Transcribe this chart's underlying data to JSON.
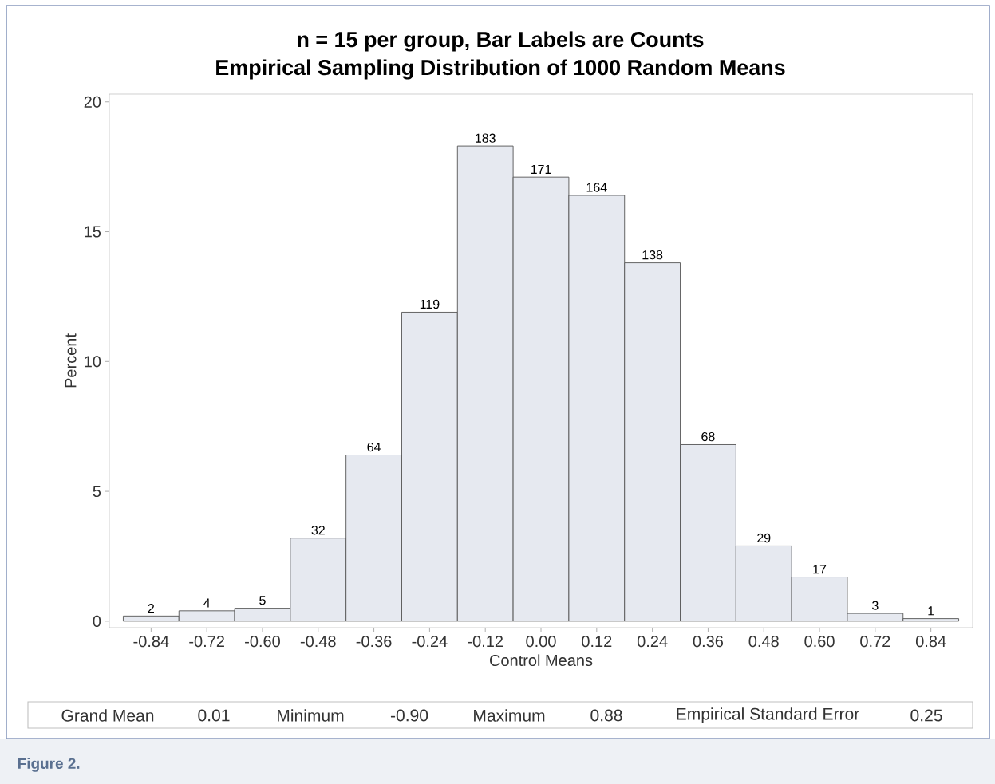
{
  "chart_data": {
    "type": "histogram",
    "title": "n = 15 per group, Bar Labels are Counts",
    "subtitle": "Empirical Sampling Distribution of 1000 Random Means",
    "xlabel": "Control Means",
    "ylabel": "Percent",
    "bins": [
      -0.9,
      -0.78,
      -0.66,
      -0.54,
      -0.42,
      -0.3,
      -0.18,
      -0.06,
      0.06,
      0.18,
      0.3,
      0.42,
      0.54,
      0.66,
      0.78,
      0.9
    ],
    "values": [
      0.2,
      0.4,
      0.5,
      3.2,
      6.4,
      11.9,
      18.3,
      17.1,
      16.4,
      13.8,
      6.8,
      2.9,
      1.7,
      0.3,
      0.1
    ],
    "color": "#e6e9f0",
    "xlim": [
      -0.93,
      0.93
    ],
    "ylim": [
      -0.25,
      20.3
    ],
    "xticks": [
      {
        "value": -0.84,
        "label": "-0.84"
      },
      {
        "value": -0.72,
        "label": "-0.72"
      },
      {
        "value": -0.6,
        "label": "-0.60"
      },
      {
        "value": -0.48,
        "label": "-0.48"
      },
      {
        "value": -0.36,
        "label": "-0.36"
      },
      {
        "value": -0.24,
        "label": "-0.24"
      },
      {
        "value": -0.12,
        "label": "-0.12"
      },
      {
        "value": 0,
        "label": "0.00"
      },
      {
        "value": 0.12,
        "label": "0.12"
      },
      {
        "value": 0.24,
        "label": "0.24"
      },
      {
        "value": 0.36,
        "label": "0.36"
      },
      {
        "value": 0.48,
        "label": "0.48"
      },
      {
        "value": 0.6,
        "label": "0.60"
      },
      {
        "value": 0.72,
        "label": "0.72"
      },
      {
        "value": 0.84,
        "label": "0.84"
      }
    ],
    "yticks": [
      0,
      5,
      10,
      15,
      20
    ],
    "annotations": [
      "Grand Mean",
      "0.01",
      "Minimum",
      "-0.90",
      "Maximum",
      "0.88",
      "Empirical Standard Error",
      "0.25",
      "Figure 2.",
      {
        "text": "2",
        "x": -0.84,
        "y": 0.2
      },
      {
        "text": "4",
        "x": -0.72,
        "y": 0.4
      },
      {
        "text": "5",
        "x": -0.6,
        "y": 0.5
      },
      {
        "text": "32",
        "x": -0.48,
        "y": 3.2
      },
      {
        "text": "64",
        "x": -0.36,
        "y": 6.4
      },
      {
        "text": "119",
        "x": -0.24,
        "y": 11.9
      },
      {
        "text": "183",
        "x": -0.12,
        "y": 18.3
      },
      {
        "text": "171",
        "x": 0,
        "y": 17.1
      },
      {
        "text": "164",
        "x": 0.12,
        "y": 16.4
      },
      {
        "text": "138",
        "x": 0.24,
        "y": 13.8
      },
      {
        "text": "68",
        "x": 0.36,
        "y": 6.8
      },
      {
        "text": "29",
        "x": 0.48,
        "y": 2.9
      },
      {
        "text": "17",
        "x": 0.6,
        "y": 1.7
      },
      {
        "text": "3",
        "x": 0.72,
        "y": 0.3
      },
      {
        "text": "1",
        "x": 0.84,
        "y": 0.1
      }
    ]
  }
}
